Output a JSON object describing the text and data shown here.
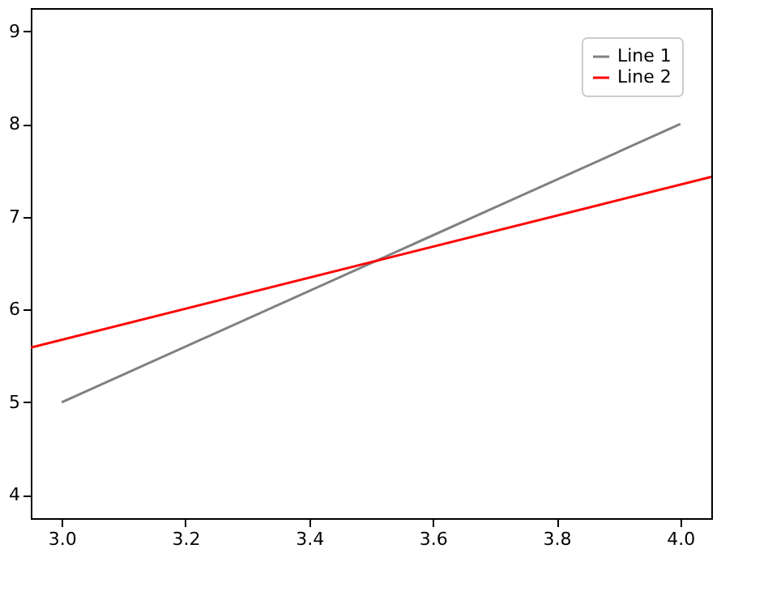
{
  "chart_data": {
    "type": "line",
    "xlim": [
      2.95,
      4.05
    ],
    "ylim": [
      3.75,
      9.25
    ],
    "xticks": [
      {
        "value": 3.0,
        "label": "3.0"
      },
      {
        "value": 3.2,
        "label": "3.2"
      },
      {
        "value": 3.4,
        "label": "3.4"
      },
      {
        "value": 3.6,
        "label": "3.6"
      },
      {
        "value": 3.8,
        "label": "3.8"
      },
      {
        "value": 4.0,
        "label": "4.0"
      }
    ],
    "yticks": [
      4,
      5,
      6,
      7,
      8,
      9
    ],
    "grid": false,
    "legend": "top right",
    "line_style": "solid",
    "marker": "none",
    "series": [
      {
        "name": "Line 1",
        "color": "#808080",
        "x": [
          3.0,
          4.0
        ],
        "values": [
          5.0,
          8.0
        ]
      },
      {
        "name": "Line 2",
        "color": "#ff0000",
        "x": [
          2.95,
          4.05
        ],
        "values": [
          5.59,
          7.43
        ]
      }
    ]
  }
}
